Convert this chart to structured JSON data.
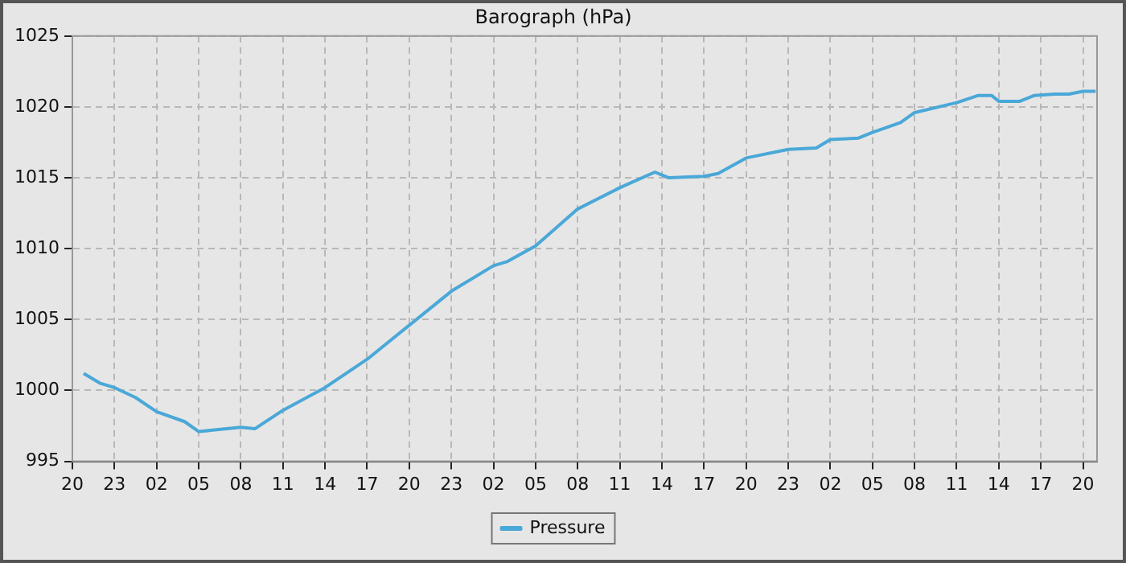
{
  "chart_data": {
    "type": "line",
    "title": "Barograph (hPa)",
    "x": [
      "--01-01T20:48",
      "--01-01T22:00",
      "--01-01T23:00",
      "--01-02T00:30",
      "--01-02T02:00",
      "--01-02T04:00",
      "--01-02T05:00",
      "--01-02T06:00",
      "--01-02T08:00",
      "--01-02T09:00",
      "--01-02T11:00",
      "--01-02T14:00",
      "--01-02T17:00",
      "--01-02T20:00",
      "--01-02T23:00",
      "--01-03T02:00",
      "--01-03T03:00",
      "--01-03T05:00",
      "--01-03T08:00",
      "--01-03T11:00",
      "--01-03T13:30",
      "--01-03T14:30",
      "--01-03T17:00",
      "--01-03T18:00",
      "--01-03T20:00",
      "--01-03T23:00",
      "--01-04T01:00",
      "--01-04T02:00",
      "--01-04T04:00",
      "--01-04T05:00",
      "--01-04T07:00",
      "--01-04T08:00",
      "--01-04T11:00",
      "--01-04T12:30",
      "--01-04T13:30",
      "--01-04T14:00",
      "--01-04T15:30",
      "--01-04T16:30",
      "--01-04T18:00",
      "--01-04T19:00",
      "--01-04T20:00",
      "--01-04T20:54"
    ],
    "series": [
      {
        "name": "Pressure",
        "color": "#4aa8d8",
        "values": [
          1001.2,
          1000.5,
          1000.2,
          999.5,
          998.5,
          997.8,
          997.1,
          997.2,
          997.4,
          997.3,
          998.6,
          1000.2,
          1002.2,
          1004.6,
          1007.0,
          1008.8,
          1009.1,
          1010.2,
          1012.8,
          1014.3,
          1015.4,
          1015.0,
          1015.1,
          1015.3,
          1016.4,
          1017.0,
          1017.1,
          1017.7,
          1017.8,
          1018.2,
          1018.9,
          1019.6,
          1020.3,
          1020.8,
          1020.8,
          1020.4,
          1020.4,
          1020.8,
          1020.9,
          1020.9,
          1021.1,
          1021.1
        ]
      }
    ],
    "xlim": [
      "--01-01T20:00",
      "--01-04T21:00"
    ],
    "xticks": [
      {
        "value": "--01-01T20:00",
        "label": "20"
      },
      {
        "value": "--01-01T23:00",
        "label": "23"
      },
      {
        "value": "--01-02T02:00",
        "label": "02"
      },
      {
        "value": "--01-02T05:00",
        "label": "05"
      },
      {
        "value": "--01-02T08:00",
        "label": "08"
      },
      {
        "value": "--01-02T11:00",
        "label": "11"
      },
      {
        "value": "--01-02T14:00",
        "label": "14"
      },
      {
        "value": "--01-02T17:00",
        "label": "17"
      },
      {
        "value": "--01-02T20:00",
        "label": "20"
      },
      {
        "value": "--01-02T23:00",
        "label": "23"
      },
      {
        "value": "--01-03T02:00",
        "label": "02"
      },
      {
        "value": "--01-03T05:00",
        "label": "05"
      },
      {
        "value": "--01-03T08:00",
        "label": "08"
      },
      {
        "value": "--01-03T11:00",
        "label": "11"
      },
      {
        "value": "--01-03T14:00",
        "label": "14"
      },
      {
        "value": "--01-03T17:00",
        "label": "17"
      },
      {
        "value": "--01-03T20:00",
        "label": "20"
      },
      {
        "value": "--01-03T23:00",
        "label": "23"
      },
      {
        "value": "--01-04T02:00",
        "label": "02"
      },
      {
        "value": "--01-04T05:00",
        "label": "05"
      },
      {
        "value": "--01-04T08:00",
        "label": "08"
      },
      {
        "value": "--01-04T11:00",
        "label": "11"
      },
      {
        "value": "--01-04T14:00",
        "label": "14"
      },
      {
        "value": "--01-04T17:00",
        "label": "17"
      },
      {
        "value": "--01-04T20:00",
        "label": "20"
      }
    ],
    "ylim": [
      995,
      1025
    ],
    "yticks": [
      995,
      1000,
      1005,
      1010,
      1015,
      1020,
      1025
    ],
    "grid": true,
    "legend": "bottom",
    "marker": "none",
    "line_style": "solid"
  }
}
